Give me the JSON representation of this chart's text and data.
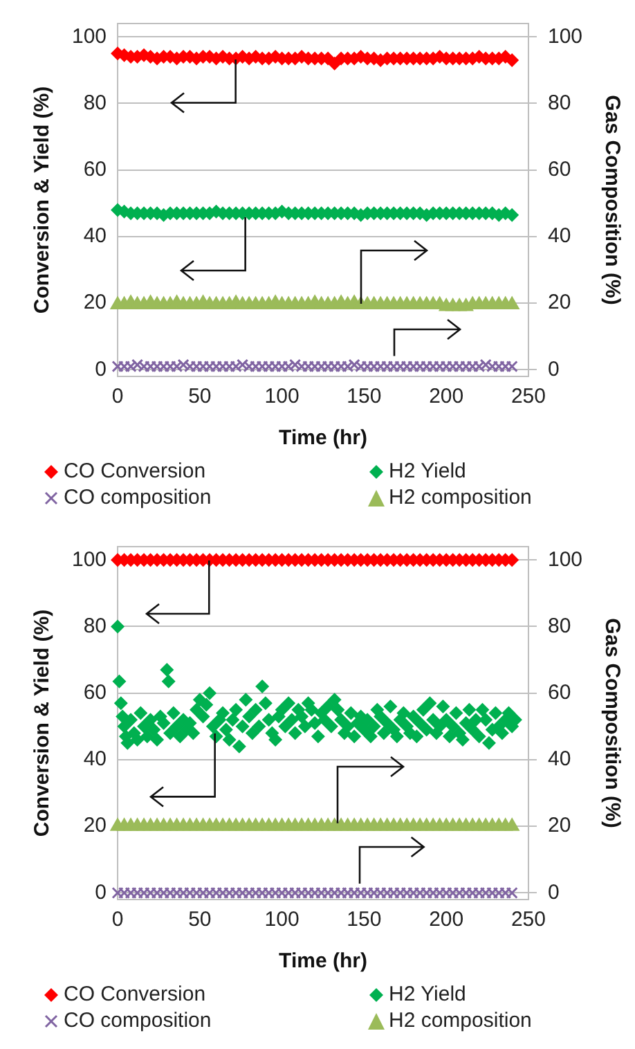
{
  "chart_data": [
    {
      "type": "scatter",
      "xlabel": "Time (hr)",
      "ylabel": "Conversion & Yield (%)",
      "y2label": "Gas Composition (%)",
      "xlim": [
        0,
        250
      ],
      "xticks": [
        0,
        50,
        100,
        150,
        200,
        250
      ],
      "ylim": [
        -2,
        104
      ],
      "yticks": [
        0,
        20,
        40,
        60,
        80,
        100
      ],
      "y2lim": [
        -2,
        104
      ],
      "y2ticks": [
        0,
        20,
        40,
        60,
        80,
        100
      ],
      "grid": "y",
      "legend": "bottom",
      "x": [
        0,
        4,
        8,
        12,
        16,
        20,
        24,
        28,
        32,
        36,
        40,
        44,
        48,
        52,
        56,
        60,
        64,
        68,
        72,
        76,
        80,
        84,
        88,
        92,
        96,
        100,
        104,
        108,
        112,
        116,
        120,
        124,
        128,
        132,
        136,
        140,
        144,
        148,
        152,
        156,
        160,
        164,
        168,
        172,
        176,
        180,
        184,
        188,
        192,
        196,
        200,
        204,
        208,
        212,
        216,
        220,
        224,
        228,
        232,
        236,
        240
      ],
      "series": [
        {
          "name": "CO Conversion",
          "color": "#ff0000",
          "marker": "diamond",
          "values": [
            95,
            94.5,
            94,
            94,
            94.5,
            94,
            93.5,
            94,
            94,
            93.5,
            94,
            94,
            93.5,
            94,
            94,
            93.5,
            94,
            93.5,
            93.5,
            94,
            93.5,
            94,
            93.5,
            93.5,
            94,
            93.5,
            93.5,
            93.5,
            94,
            93.5,
            93.5,
            93.5,
            93.5,
            92,
            93.5,
            93.5,
            93.5,
            94,
            93.5,
            93.5,
            93,
            93.5,
            93.5,
            93.5,
            93.5,
            93.5,
            93.5,
            93.5,
            93.5,
            94,
            93.5,
            93.5,
            93.5,
            93.5,
            93.5,
            94,
            93.5,
            93.5,
            93.5,
            94,
            93
          ]
        },
        {
          "name": "H2 Yield",
          "color": "#00b050",
          "marker": "diamond",
          "values": [
            48,
            47.5,
            47,
            47,
            47,
            47,
            47,
            46.5,
            47,
            47,
            47,
            47,
            47,
            47,
            47,
            47.5,
            47,
            47,
            47,
            47,
            47,
            47,
            47,
            47,
            47,
            47.5,
            47,
            47,
            47,
            47,
            47,
            47,
            47,
            47,
            47,
            47,
            47,
            46.5,
            47,
            47,
            47,
            47,
            47,
            47,
            47,
            47,
            47,
            46.5,
            47,
            47,
            47,
            47,
            47,
            47,
            47,
            47,
            47,
            47,
            46.5,
            47,
            46.5
          ]
        },
        {
          "name": "CO composition",
          "color": "#8064a2",
          "marker": "cross",
          "axis": "y2",
          "values": [
            1,
            1,
            1,
            1.5,
            1,
            1,
            1,
            1,
            1,
            1,
            1.5,
            1,
            1,
            1,
            1,
            1,
            1,
            1,
            1,
            1.5,
            1,
            1,
            1,
            1,
            1,
            1,
            1,
            1.5,
            1,
            1,
            1,
            1,
            1,
            1,
            1,
            1,
            1.5,
            1,
            1,
            1,
            1,
            1,
            1,
            1,
            1,
            1,
            1,
            1,
            1,
            1,
            1,
            1,
            1,
            1,
            1,
            1,
            1.5,
            1,
            1,
            1,
            1
          ]
        },
        {
          "name": "H2 composition",
          "color": "#9bbb59",
          "marker": "triangle",
          "axis": "y2",
          "values": [
            19.5,
            19.5,
            20,
            19.5,
            19.5,
            20,
            19.5,
            19.5,
            19.5,
            20,
            19.5,
            19.5,
            19.5,
            20,
            19.5,
            19.5,
            19.5,
            19.5,
            20,
            19.5,
            19.5,
            19.5,
            19.5,
            19.5,
            20,
            19.5,
            19.5,
            19.5,
            19.5,
            19.5,
            20,
            19.5,
            19.5,
            19.5,
            20,
            19.5,
            20,
            19.5,
            19.5,
            19.5,
            19.5,
            19.5,
            19.5,
            19.5,
            19.5,
            19.5,
            19.5,
            19.5,
            19.5,
            19.5,
            19,
            19,
            19,
            19,
            19.5,
            19.5,
            19.5,
            19.5,
            19.5,
            19.5,
            19.5
          ]
        }
      ]
    },
    {
      "type": "scatter",
      "xlabel": "Time (hr)",
      "ylabel": "Conversion & Yield (%)",
      "y2label": "Gas Composition (%)",
      "xlim": [
        0,
        250
      ],
      "xticks": [
        0,
        50,
        100,
        150,
        200,
        250
      ],
      "ylim": [
        -2,
        104
      ],
      "yticks": [
        0,
        20,
        40,
        60,
        80,
        100
      ],
      "y2lim": [
        -2,
        104
      ],
      "y2ticks": [
        0,
        20,
        40,
        60,
        80,
        100
      ],
      "grid": "y",
      "legend": "bottom",
      "x": [
        0,
        4,
        8,
        12,
        16,
        20,
        24,
        28,
        32,
        36,
        40,
        44,
        48,
        52,
        56,
        60,
        64,
        68,
        72,
        76,
        80,
        84,
        88,
        92,
        96,
        100,
        104,
        108,
        112,
        116,
        120,
        124,
        128,
        132,
        136,
        140,
        144,
        148,
        152,
        156,
        160,
        164,
        168,
        172,
        176,
        180,
        184,
        188,
        192,
        196,
        200,
        204,
        208,
        212,
        216,
        220,
        224,
        228,
        232,
        236,
        240
      ],
      "series": [
        {
          "name": "CO Conversion",
          "color": "#ff0000",
          "marker": "diamond",
          "values": [
            100,
            100,
            100,
            100,
            100,
            100,
            100,
            100,
            100,
            100,
            100,
            100,
            100,
            100,
            100,
            100,
            100,
            100,
            100,
            100,
            100,
            100,
            100,
            100,
            100,
            100,
            100,
            100,
            100,
            100,
            100,
            100,
            100,
            100,
            100,
            100,
            100,
            100,
            100,
            100,
            100,
            100,
            100,
            100,
            100,
            100,
            100,
            100,
            100,
            100,
            100,
            100,
            100,
            100,
            100,
            100,
            100,
            100,
            100,
            100,
            100
          ]
        },
        {
          "name": "H2 Yield",
          "color": "#00b050",
          "marker": "diamond",
          "x": [
            0,
            1,
            2,
            3,
            4,
            5,
            6,
            8,
            10,
            12,
            14,
            16,
            18,
            20,
            22,
            24,
            26,
            28,
            30,
            31,
            32,
            34,
            36,
            38,
            40,
            42,
            44,
            46,
            48,
            50,
            52,
            54,
            56,
            58,
            60,
            62,
            64,
            66,
            68,
            70,
            72,
            74,
            76,
            78,
            80,
            82,
            84,
            86,
            88,
            90,
            92,
            94,
            96,
            98,
            100,
            102,
            104,
            106,
            108,
            110,
            112,
            114,
            116,
            118,
            120,
            122,
            124,
            126,
            128,
            130,
            132,
            134,
            136,
            138,
            140,
            142,
            144,
            146,
            148,
            150,
            152,
            154,
            156,
            158,
            160,
            162,
            164,
            166,
            168,
            170,
            172,
            174,
            176,
            178,
            180,
            182,
            184,
            186,
            188,
            190,
            192,
            194,
            196,
            198,
            200,
            202,
            204,
            206,
            208,
            210,
            212,
            214,
            216,
            218,
            220,
            222,
            224,
            226,
            228,
            230,
            232,
            234,
            236,
            238,
            240,
            242
          ],
          "values": [
            80,
            63.5,
            57,
            53,
            50,
            47,
            45,
            52,
            48,
            46,
            54,
            50,
            47,
            52,
            49,
            46,
            53,
            51,
            67,
            63.5,
            48,
            54,
            50,
            47,
            52,
            49,
            51,
            48,
            55,
            58,
            53,
            56.5,
            60,
            50,
            47,
            52,
            54,
            49,
            46,
            52,
            55,
            44,
            50,
            58,
            53,
            48,
            55,
            50,
            62,
            57,
            52,
            48,
            46,
            53,
            55,
            50,
            57,
            52,
            48,
            55,
            53,
            50,
            57,
            55,
            51,
            47,
            54,
            52,
            56,
            50,
            58,
            55,
            52,
            48,
            50,
            54,
            47,
            51,
            53,
            49,
            52,
            47,
            50,
            55,
            53,
            48,
            51,
            56,
            49,
            47,
            52,
            54,
            50,
            48,
            53,
            47,
            51,
            55,
            49,
            57,
            52,
            48,
            50,
            56,
            52,
            47,
            50,
            54,
            48,
            46,
            51,
            55,
            49,
            52,
            47,
            55,
            52,
            45,
            49,
            54,
            50,
            48,
            52,
            54,
            50,
            52
          ]
        },
        {
          "name": "CO composition",
          "color": "#8064a2",
          "marker": "cross",
          "axis": "y2",
          "values": [
            0,
            0,
            0,
            0,
            0,
            0,
            0,
            0,
            0,
            0,
            0,
            0,
            0,
            0,
            0,
            0,
            0,
            0,
            0,
            0,
            0,
            0,
            0,
            0,
            0,
            0,
            0,
            0,
            0,
            0,
            0,
            0,
            0,
            0,
            0,
            0,
            0,
            0,
            0,
            0,
            0,
            0,
            0,
            0,
            0,
            0,
            0,
            0,
            0,
            0,
            0,
            0,
            0,
            0,
            0,
            0,
            0,
            0,
            0,
            0,
            0
          ]
        },
        {
          "name": "H2 composition",
          "color": "#9bbb59",
          "marker": "triangle",
          "axis": "y2",
          "values": [
            20,
            20,
            20,
            20,
            20,
            20,
            20,
            20,
            20,
            20,
            20,
            20,
            20,
            20,
            20,
            20,
            20,
            20,
            20,
            20,
            20,
            20,
            20,
            20,
            20,
            20,
            20,
            20,
            20,
            20,
            20,
            20,
            20,
            20,
            20,
            20,
            20,
            20,
            20,
            20,
            20,
            20,
            20,
            20,
            20,
            20,
            20,
            20,
            20,
            20,
            20,
            20,
            20,
            20,
            20,
            20,
            20,
            20,
            20,
            20,
            20
          ]
        }
      ]
    }
  ]
}
